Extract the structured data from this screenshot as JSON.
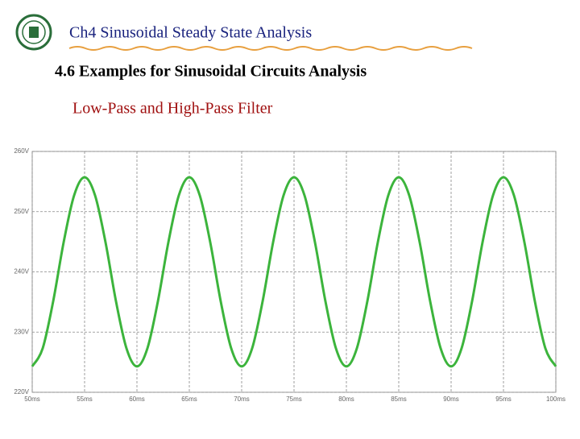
{
  "header": {
    "title": "Ch4  Sinusoidal Steady State Analysis",
    "section": "4.6 Examples for Sinusoidal Circuits Analysis",
    "topic": "Low-Pass and High-Pass Filter"
  },
  "chart_data": {
    "type": "line",
    "x": [
      50,
      51,
      52,
      53,
      54,
      55,
      56,
      57,
      58,
      59,
      60,
      61,
      62,
      63,
      64,
      65,
      66,
      67,
      68,
      69,
      70,
      71,
      72,
      73,
      74,
      75,
      76,
      77,
      78,
      79,
      80,
      81,
      82,
      83,
      84,
      85,
      86,
      87,
      88,
      89,
      90,
      91,
      92,
      93,
      94,
      95,
      96,
      97,
      98,
      99,
      100
    ],
    "series": [
      {
        "color": "#3cb43c",
        "values": [
          224.3,
          227.3,
          235.1,
          244.9,
          252.7,
          255.7,
          252.7,
          244.9,
          235.1,
          227.3,
          224.3,
          227.3,
          235.1,
          244.9,
          252.7,
          255.7,
          252.7,
          244.9,
          235.1,
          227.3,
          224.3,
          227.3,
          235.1,
          244.9,
          252.7,
          255.7,
          252.7,
          244.9,
          235.1,
          227.3,
          224.3,
          227.3,
          235.1,
          244.9,
          252.7,
          255.7,
          252.7,
          244.9,
          235.1,
          227.3,
          224.3,
          227.3,
          235.1,
          244.9,
          252.7,
          255.7,
          252.7,
          244.9,
          235.1,
          227.3,
          224.3
        ]
      }
    ],
    "xlim": [
      50,
      100
    ],
    "xticks": [
      {
        "value": 50,
        "label": "50ms"
      },
      {
        "value": 55,
        "label": "55ms"
      },
      {
        "value": 60,
        "label": "60ms"
      },
      {
        "value": 65,
        "label": "65ms"
      },
      {
        "value": 70,
        "label": "70ms"
      },
      {
        "value": 75,
        "label": "75ms"
      },
      {
        "value": 80,
        "label": "80ms"
      },
      {
        "value": 85,
        "label": "85ms"
      },
      {
        "value": 90,
        "label": "90ms"
      },
      {
        "value": 95,
        "label": "95ms"
      },
      {
        "value": 100,
        "label": "100ms"
      }
    ],
    "ylim": [
      220,
      260
    ],
    "yticks": [
      {
        "value": 220,
        "label": "220V"
      },
      {
        "value": 230,
        "label": "230V"
      },
      {
        "value": 240,
        "label": "240V"
      },
      {
        "value": 250,
        "label": "250V"
      },
      {
        "value": 260,
        "label": "260V"
      }
    ],
    "grid": true
  }
}
